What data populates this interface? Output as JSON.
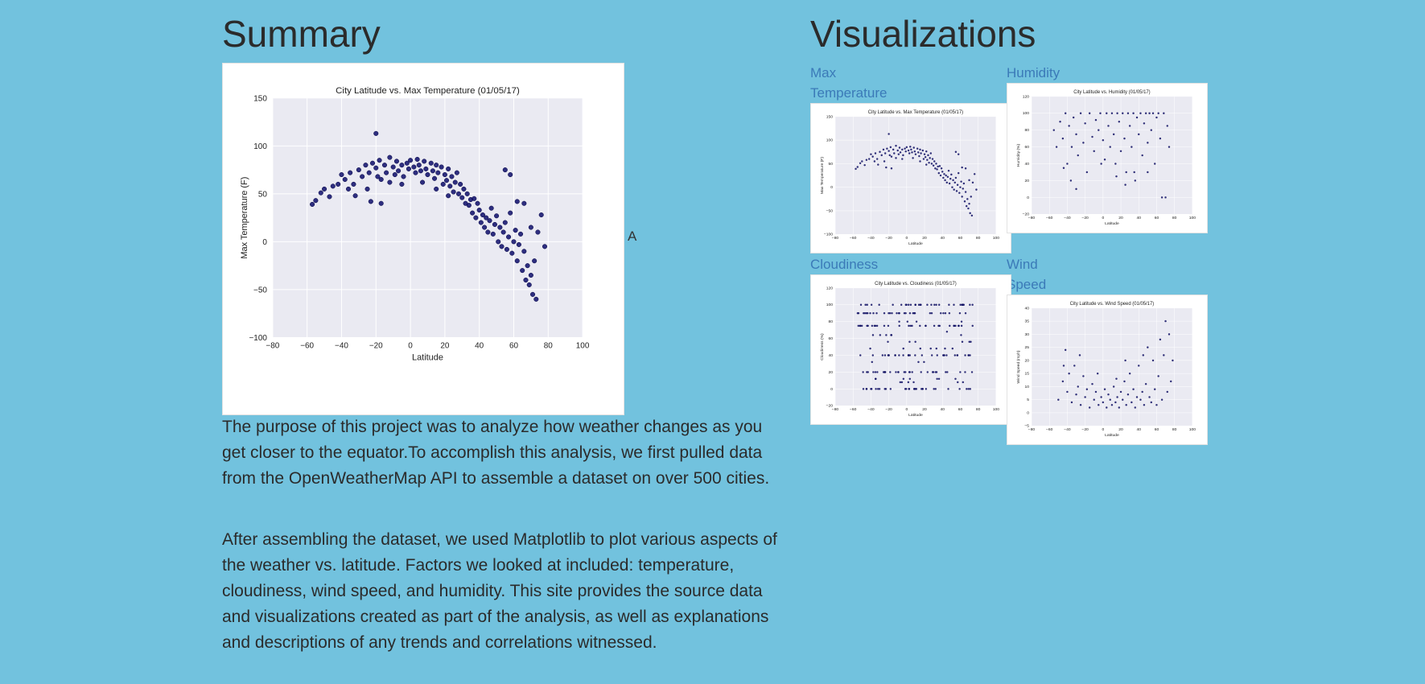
{
  "summary": {
    "title": "Summary",
    "alt_text": "A",
    "paragraphs": [
      "The purpose of this project was to analyze how weather changes as you get closer to the equator.To accomplish this analysis, we first pulled data from the OpenWeatherMap API to assemble a dataset on over 500 cities.",
      "After assembling the dataset, we used Matplotlib to plot various aspects of the weather vs. latitude. Factors we looked at included: temperature, cloudiness, wind speed, and humidity. This site provides the source data and visualizations created as part of the analysis, as well as explanations and descriptions of any trends and correlations witnessed."
    ]
  },
  "visualizations": {
    "title": "Visualizations",
    "links": [
      "Max Temperature",
      "Humidity",
      "Cloudiness",
      "Wind Speed"
    ]
  },
  "colors": {
    "background": "#72c2de",
    "link": "#3b7ab8",
    "plot_bg": "#eaeaf2",
    "marker": "#0d0d6b"
  },
  "chart_data": [
    {
      "id": "main",
      "type": "scatter",
      "title": "City Latitude vs. Max Temperature (01/05/17)",
      "xlabel": "Latitude",
      "ylabel": "Max Temperature (F)",
      "xlim": [
        -80,
        100
      ],
      "ylim": [
        -100,
        150
      ],
      "xticks": [
        -80,
        -60,
        -40,
        -20,
        0,
        20,
        40,
        60,
        80,
        100
      ],
      "yticks": [
        -100,
        -50,
        0,
        50,
        100,
        150
      ],
      "grid": true,
      "points": [
        [
          -57,
          39
        ],
        [
          -55,
          43
        ],
        [
          -52,
          51
        ],
        [
          -50,
          55
        ],
        [
          -47,
          47
        ],
        [
          -45,
          58
        ],
        [
          -42,
          60
        ],
        [
          -40,
          70
        ],
        [
          -38,
          65
        ],
        [
          -36,
          55
        ],
        [
          -35,
          72
        ],
        [
          -33,
          60
        ],
        [
          -32,
          48
        ],
        [
          -30,
          75
        ],
        [
          -28,
          68
        ],
        [
          -26,
          80
        ],
        [
          -25,
          55
        ],
        [
          -24,
          72
        ],
        [
          -22,
          82
        ],
        [
          -20,
          77
        ],
        [
          -20,
          113
        ],
        [
          -19,
          68
        ],
        [
          -18,
          85
        ],
        [
          -17,
          65
        ],
        [
          -15,
          80
        ],
        [
          -14,
          72
        ],
        [
          -12,
          88
        ],
        [
          -12,
          62
        ],
        [
          -10,
          78
        ],
        [
          -9,
          70
        ],
        [
          -8,
          84
        ],
        [
          -7,
          74
        ],
        [
          -5,
          80
        ],
        [
          -4,
          68
        ],
        [
          -2,
          82
        ],
        [
          -1,
          76
        ],
        [
          0,
          85
        ],
        [
          2,
          78
        ],
        [
          3,
          72
        ],
        [
          4,
          86
        ],
        [
          5,
          80
        ],
        [
          6,
          74
        ],
        [
          8,
          84
        ],
        [
          9,
          76
        ],
        [
          10,
          70
        ],
        [
          12,
          82
        ],
        [
          13,
          74
        ],
        [
          14,
          66
        ],
        [
          15,
          80
        ],
        [
          16,
          72
        ],
        [
          18,
          78
        ],
        [
          19,
          60
        ],
        [
          20,
          70
        ],
        [
          21,
          64
        ],
        [
          22,
          76
        ],
        [
          23,
          58
        ],
        [
          24,
          68
        ],
        [
          25,
          52
        ],
        [
          26,
          62
        ],
        [
          27,
          72
        ],
        [
          28,
          50
        ],
        [
          29,
          60
        ],
        [
          30,
          46
        ],
        [
          31,
          55
        ],
        [
          32,
          40
        ],
        [
          33,
          50
        ],
        [
          34,
          38
        ],
        [
          35,
          44
        ],
        [
          36,
          30
        ],
        [
          37,
          45
        ],
        [
          38,
          25
        ],
        [
          39,
          40
        ],
        [
          40,
          33
        ],
        [
          41,
          20
        ],
        [
          42,
          28
        ],
        [
          43,
          15
        ],
        [
          44,
          25
        ],
        [
          45,
          10
        ],
        [
          46,
          22
        ],
        [
          47,
          35
        ],
        [
          48,
          8
        ],
        [
          49,
          18
        ],
        [
          50,
          27
        ],
        [
          51,
          0
        ],
        [
          52,
          15
        ],
        [
          53,
          -5
        ],
        [
          54,
          10
        ],
        [
          55,
          20
        ],
        [
          56,
          -8
        ],
        [
          57,
          5
        ],
        [
          58,
          30
        ],
        [
          59,
          -12
        ],
        [
          60,
          0
        ],
        [
          61,
          12
        ],
        [
          62,
          -20
        ],
        [
          63,
          -3
        ],
        [
          64,
          8
        ],
        [
          65,
          -30
        ],
        [
          66,
          -10
        ],
        [
          67,
          -40
        ],
        [
          68,
          -25
        ],
        [
          69,
          -45
        ],
        [
          70,
          -35
        ],
        [
          71,
          -55
        ],
        [
          72,
          -20
        ],
        [
          73,
          -60
        ],
        [
          -23,
          42
        ],
        [
          -17,
          40
        ],
        [
          -5,
          60
        ],
        [
          7,
          62
        ],
        [
          15,
          55
        ],
        [
          22,
          48
        ],
        [
          55,
          75
        ],
        [
          58,
          70
        ],
        [
          62,
          42
        ],
        [
          66,
          40
        ],
        [
          70,
          15
        ],
        [
          74,
          10
        ],
        [
          76,
          28
        ],
        [
          78,
          -5
        ]
      ]
    },
    {
      "id": "maxtemp",
      "type": "scatter",
      "title": "City Latitude vs. Max Temperature (01/05/17)",
      "xlabel": "Latitude",
      "ylabel": "Max Temperature (F)",
      "xlim": [
        -80,
        100
      ],
      "ylim": [
        -100,
        150
      ],
      "xticks": [
        -80,
        -60,
        -40,
        -20,
        0,
        20,
        40,
        60,
        80,
        100
      ],
      "yticks": [
        -100,
        -50,
        0,
        50,
        100,
        150
      ],
      "grid": true
    },
    {
      "id": "humidity",
      "type": "scatter",
      "title": "City Latitude vs. Humidity (01/05/17)",
      "xlabel": "Latitude",
      "ylabel": "Humidity (%)",
      "xlim": [
        -80,
        100
      ],
      "ylim": [
        -20,
        120
      ],
      "xticks": [
        -80,
        -60,
        -40,
        -20,
        0,
        20,
        40,
        60,
        80,
        100
      ],
      "yticks": [
        -20,
        0,
        20,
        40,
        60,
        80,
        100,
        120
      ],
      "grid": true,
      "points": [
        [
          -55,
          80
        ],
        [
          -52,
          60
        ],
        [
          -48,
          90
        ],
        [
          -45,
          70
        ],
        [
          -42,
          100
        ],
        [
          -40,
          40
        ],
        [
          -38,
          85
        ],
        [
          -35,
          60
        ],
        [
          -33,
          95
        ],
        [
          -30,
          75
        ],
        [
          -28,
          50
        ],
        [
          -25,
          100
        ],
        [
          -22,
          65
        ],
        [
          -20,
          88
        ],
        [
          -18,
          30
        ],
        [
          -15,
          100
        ],
        [
          -12,
          72
        ],
        [
          -10,
          55
        ],
        [
          -8,
          92
        ],
        [
          -5,
          80
        ],
        [
          -3,
          100
        ],
        [
          0,
          68
        ],
        [
          2,
          45
        ],
        [
          4,
          100
        ],
        [
          6,
          85
        ],
        [
          8,
          60
        ],
        [
          10,
          100
        ],
        [
          12,
          75
        ],
        [
          14,
          40
        ],
        [
          16,
          100
        ],
        [
          18,
          90
        ],
        [
          20,
          55
        ],
        [
          22,
          100
        ],
        [
          24,
          70
        ],
        [
          26,
          30
        ],
        [
          28,
          100
        ],
        [
          30,
          85
        ],
        [
          32,
          60
        ],
        [
          34,
          100
        ],
        [
          36,
          20
        ],
        [
          38,
          95
        ],
        [
          40,
          75
        ],
        [
          42,
          100
        ],
        [
          44,
          50
        ],
        [
          46,
          88
        ],
        [
          48,
          100
        ],
        [
          50,
          65
        ],
        [
          52,
          100
        ],
        [
          54,
          80
        ],
        [
          56,
          100
        ],
        [
          58,
          40
        ],
        [
          60,
          95
        ],
        [
          62,
          100
        ],
        [
          64,
          70
        ],
        [
          66,
          0
        ],
        [
          68,
          100
        ],
        [
          70,
          0
        ],
        [
          72,
          85
        ],
        [
          74,
          60
        ],
        [
          -44,
          35
        ],
        [
          -36,
          20
        ],
        [
          -30,
          10
        ],
        [
          -2,
          40
        ],
        [
          15,
          25
        ],
        [
          25,
          15
        ],
        [
          35,
          30
        ],
        [
          50,
          30
        ]
      ]
    },
    {
      "id": "cloudiness",
      "type": "scatter",
      "title": "City Latitude vs. Cloudiness (01/05/17)",
      "xlabel": "Latitude",
      "ylabel": "Cloudiness (%)",
      "xlim": [
        -80,
        100
      ],
      "ylim": [
        -20,
        120
      ],
      "xticks": [
        -80,
        -60,
        -40,
        -20,
        0,
        20,
        40,
        60,
        80,
        100
      ],
      "yticks": [
        -20,
        0,
        20,
        40,
        60,
        80,
        100,
        120
      ],
      "grid": true
    },
    {
      "id": "wind",
      "type": "scatter",
      "title": "City Latitude vs. Wind Speed (01/05/17)",
      "xlabel": "Latitude",
      "ylabel": "Wind Speed (mph)",
      "xlim": [
        -80,
        100
      ],
      "ylim": [
        -5,
        40
      ],
      "xticks": [
        -80,
        -60,
        -40,
        -20,
        0,
        20,
        40,
        60,
        80,
        100
      ],
      "yticks": [
        -5,
        0,
        5,
        10,
        15,
        20,
        25,
        30,
        35,
        40
      ],
      "grid": true,
      "points": [
        [
          -50,
          5
        ],
        [
          -45,
          12
        ],
        [
          -42,
          24
        ],
        [
          -40,
          8
        ],
        [
          -38,
          15
        ],
        [
          -35,
          4
        ],
        [
          -32,
          18
        ],
        [
          -30,
          7
        ],
        [
          -28,
          10
        ],
        [
          -25,
          3
        ],
        [
          -22,
          14
        ],
        [
          -20,
          6
        ],
        [
          -18,
          9
        ],
        [
          -15,
          2
        ],
        [
          -12,
          11
        ],
        [
          -10,
          5
        ],
        [
          -8,
          8
        ],
        [
          -5,
          3
        ],
        [
          -2,
          6
        ],
        [
          0,
          4
        ],
        [
          2,
          9
        ],
        [
          4,
          2
        ],
        [
          6,
          7
        ],
        [
          8,
          5
        ],
        [
          10,
          3
        ],
        [
          12,
          10
        ],
        [
          14,
          4
        ],
        [
          16,
          6
        ],
        [
          18,
          2
        ],
        [
          20,
          8
        ],
        [
          22,
          5
        ],
        [
          24,
          12
        ],
        [
          26,
          3
        ],
        [
          28,
          7
        ],
        [
          30,
          15
        ],
        [
          32,
          4
        ],
        [
          34,
          9
        ],
        [
          36,
          2
        ],
        [
          38,
          6
        ],
        [
          40,
          18
        ],
        [
          42,
          5
        ],
        [
          44,
          8
        ],
        [
          46,
          3
        ],
        [
          48,
          11
        ],
        [
          50,
          25
        ],
        [
          52,
          6
        ],
        [
          54,
          4
        ],
        [
          56,
          20
        ],
        [
          58,
          9
        ],
        [
          60,
          3
        ],
        [
          62,
          14
        ],
        [
          64,
          28
        ],
        [
          66,
          5
        ],
        [
          68,
          22
        ],
        [
          70,
          35
        ],
        [
          72,
          8
        ],
        [
          74,
          30
        ],
        [
          76,
          12
        ],
        [
          78,
          20
        ],
        [
          -44,
          18
        ],
        [
          -26,
          22
        ],
        [
          -6,
          15
        ],
        [
          15,
          13
        ],
        [
          25,
          20
        ],
        [
          45,
          22
        ]
      ]
    }
  ]
}
